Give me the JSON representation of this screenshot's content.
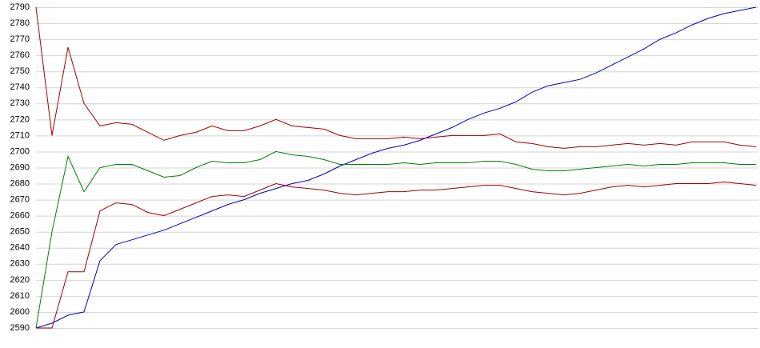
{
  "chart_data": {
    "type": "line",
    "ylim": [
      2590,
      2790
    ],
    "yticks": [
      2590,
      2600,
      2610,
      2620,
      2630,
      2640,
      2650,
      2660,
      2670,
      2680,
      2690,
      2700,
      2710,
      2720,
      2730,
      2740,
      2750,
      2760,
      2770,
      2780,
      2790
    ],
    "grid": true,
    "series": [
      {
        "color": "#0000c0",
        "values": [
          2590,
          2593,
          2598,
          2600,
          2632,
          2642,
          2645,
          2648,
          2651,
          2655,
          2659,
          2663,
          2667,
          2670,
          2674,
          2677,
          2680,
          2682,
          2686,
          2691,
          2695,
          2699,
          2702,
          2704,
          2707,
          2711,
          2715,
          2720,
          2724,
          2727,
          2731,
          2737,
          2741,
          2743,
          2745,
          2749,
          2754,
          2759,
          2764,
          2770,
          2774,
          2779,
          2783,
          2786,
          2788,
          2790
        ]
      },
      {
        "color": "#008000",
        "values": [
          2590,
          2650,
          2697,
          2675,
          2690,
          2692,
          2692,
          2688,
          2684,
          2685,
          2690,
          2694,
          2693,
          2693,
          2695,
          2700,
          2698,
          2697,
          2695,
          2692,
          2692,
          2692,
          2692,
          2693,
          2692,
          2693,
          2693,
          2693,
          2694,
          2694,
          2692,
          2689,
          2688,
          2688,
          2689,
          2690,
          2691,
          2692,
          2691,
          2692,
          2692,
          2693,
          2693,
          2693,
          2692,
          2692
        ]
      },
      {
        "color": "#a00000",
        "values": [
          2790,
          2710,
          2765,
          2730,
          2716,
          2718,
          2717,
          2712,
          2707,
          2710,
          2712,
          2716,
          2713,
          2713,
          2716,
          2720,
          2716,
          2715,
          2714,
          2710,
          2708,
          2708,
          2708,
          2709,
          2708,
          2709,
          2710,
          2710,
          2710,
          2711,
          2706,
          2705,
          2703,
          2702,
          2703,
          2703,
          2704,
          2705,
          2704,
          2705,
          2704,
          2706,
          2706,
          2706,
          2704,
          2703
        ]
      },
      {
        "color": "#a00000",
        "values": [
          2590,
          2590,
          2625,
          2625,
          2663,
          2668,
          2667,
          2662,
          2660,
          2664,
          2668,
          2672,
          2673,
          2672,
          2676,
          2680,
          2678,
          2677,
          2676,
          2674,
          2673,
          2674,
          2675,
          2675,
          2676,
          2676,
          2677,
          2678,
          2679,
          2679,
          2677,
          2675,
          2674,
          2673,
          2674,
          2676,
          2678,
          2679,
          2678,
          2679,
          2680,
          2680,
          2680,
          2681,
          2680,
          2679
        ]
      }
    ]
  }
}
